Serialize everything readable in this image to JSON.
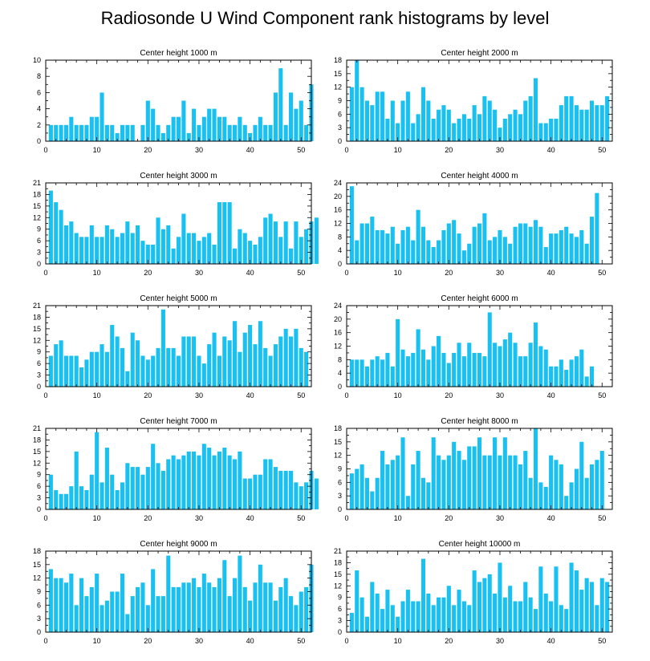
{
  "title": "Radiosonde U Wind Component rank histograms by level",
  "bar_color": "#19c1f2",
  "chart_data": [
    {
      "type": "bar",
      "title": "Center height 1000 m",
      "ylim": [
        0,
        10
      ],
      "yticks": [
        0,
        2,
        4,
        6,
        8,
        10
      ],
      "xticks": [
        0,
        10,
        20,
        30,
        40,
        50
      ],
      "values": [
        2,
        2,
        2,
        2,
        3,
        2,
        2,
        2,
        3,
        3,
        6,
        2,
        2,
        1,
        2,
        2,
        2,
        0,
        2,
        5,
        4,
        2,
        1,
        2,
        3,
        3,
        5,
        1,
        4,
        2,
        3,
        4,
        4,
        3,
        3,
        2,
        2,
        3,
        2,
        1,
        2,
        3,
        2,
        2,
        6,
        9,
        2,
        6,
        4,
        5,
        2,
        7
      ]
    },
    {
      "type": "bar",
      "title": "Center height 2000 m",
      "ylim": [
        0,
        18
      ],
      "yticks": [
        0,
        3,
        6,
        9,
        12,
        15,
        18
      ],
      "xticks": [
        0,
        10,
        20,
        30,
        40,
        50
      ],
      "values": [
        12,
        18,
        12,
        9,
        8,
        11,
        11,
        5,
        9,
        4,
        9,
        11,
        4,
        6,
        12,
        9,
        5,
        7,
        8,
        7,
        4,
        5,
        6,
        5,
        8,
        6,
        10,
        9,
        7,
        3,
        5,
        6,
        7,
        6,
        9,
        10,
        14,
        4,
        4,
        5,
        5,
        8,
        10,
        10,
        8,
        7,
        7,
        9,
        8,
        8,
        10
      ]
    },
    {
      "type": "bar",
      "title": "Center height 3000 m",
      "ylim": [
        0,
        21
      ],
      "yticks": [
        0,
        3,
        6,
        9,
        12,
        15,
        18,
        21
      ],
      "xticks": [
        0,
        10,
        20,
        30,
        40,
        50
      ],
      "values": [
        19,
        16,
        14,
        10,
        11,
        8,
        7,
        7,
        10,
        7,
        7,
        10,
        9,
        7,
        8,
        11,
        8,
        10,
        6,
        5,
        5,
        12,
        9,
        10,
        4,
        7,
        13,
        8,
        8,
        6,
        7,
        8,
        5,
        16,
        16,
        16,
        4,
        9,
        8,
        6,
        5,
        7,
        12,
        13,
        11,
        7,
        11,
        4,
        11,
        7,
        9,
        11,
        12
      ]
    },
    {
      "type": "bar",
      "title": "Center height 4000 m",
      "ylim": [
        0,
        24
      ],
      "yticks": [
        0,
        4,
        8,
        12,
        16,
        20,
        24
      ],
      "xticks": [
        0,
        10,
        20,
        30,
        40,
        50
      ],
      "values": [
        23,
        7,
        12,
        12,
        14,
        10,
        10,
        9,
        11,
        6,
        10,
        11,
        7,
        16,
        11,
        7,
        5,
        7,
        10,
        12,
        13,
        9,
        4,
        6,
        11,
        12,
        15,
        7,
        8,
        10,
        8,
        6,
        11,
        12,
        12,
        11,
        13,
        11,
        5,
        9,
        9,
        10,
        11,
        9,
        8,
        10,
        6,
        14,
        21
      ]
    },
    {
      "type": "bar",
      "title": "Center height 5000 m",
      "ylim": [
        0,
        21
      ],
      "yticks": [
        0,
        3,
        6,
        9,
        12,
        15,
        18,
        21
      ],
      "xticks": [
        0,
        10,
        20,
        30,
        40,
        50
      ],
      "values": [
        8,
        11,
        12,
        8,
        8,
        8,
        5,
        7,
        9,
        9,
        11,
        9,
        16,
        13,
        10,
        4,
        14,
        12,
        8,
        7,
        8,
        10,
        20,
        10,
        10,
        8,
        13,
        13,
        13,
        8,
        6,
        11,
        14,
        8,
        13,
        12,
        17,
        9,
        14,
        16,
        11,
        17,
        10,
        8,
        11,
        13,
        15,
        13,
        15,
        10,
        9
      ]
    },
    {
      "type": "bar",
      "title": "Center height 6000 m",
      "ylim": [
        0,
        24
      ],
      "yticks": [
        0,
        4,
        8,
        12,
        16,
        20,
        24
      ],
      "xticks": [
        0,
        10,
        20,
        30,
        40,
        50
      ],
      "values": [
        8,
        8,
        8,
        6,
        8,
        9,
        8,
        10,
        6,
        20,
        11,
        9,
        10,
        17,
        11,
        8,
        12,
        15,
        10,
        7,
        10,
        13,
        9,
        13,
        10,
        10,
        9,
        22,
        13,
        12,
        14,
        16,
        13,
        9,
        9,
        13,
        19,
        12,
        11,
        6,
        6,
        8,
        5,
        8,
        9,
        11,
        3,
        6
      ]
    },
    {
      "type": "bar",
      "title": "Center height 7000 m",
      "ylim": [
        0,
        21
      ],
      "yticks": [
        0,
        3,
        6,
        9,
        12,
        15,
        18,
        21
      ],
      "xticks": [
        0,
        10,
        20,
        30,
        40,
        50
      ],
      "values": [
        9,
        5,
        4,
        4,
        6,
        15,
        6,
        5,
        9,
        20,
        7,
        16,
        9,
        5,
        7,
        12,
        11,
        11,
        9,
        11,
        17,
        12,
        10,
        13,
        14,
        13,
        14,
        15,
        15,
        14,
        17,
        16,
        14,
        15,
        16,
        14,
        13,
        15,
        8,
        8,
        9,
        9,
        13,
        13,
        11,
        10,
        10,
        10,
        7,
        6,
        7,
        10,
        8
      ]
    },
    {
      "type": "bar",
      "title": "Center height 8000 m",
      "ylim": [
        0,
        18
      ],
      "yticks": [
        0,
        3,
        6,
        9,
        12,
        15,
        18
      ],
      "xticks": [
        0,
        10,
        20,
        30,
        40,
        50
      ],
      "values": [
        8,
        9,
        10,
        7,
        4,
        7,
        13,
        10,
        11,
        12,
        16,
        3,
        10,
        13,
        7,
        6,
        16,
        12,
        11,
        12,
        15,
        13,
        11,
        14,
        14,
        16,
        12,
        12,
        16,
        12,
        16,
        12,
        12,
        10,
        13,
        7,
        18,
        6,
        5,
        12,
        11,
        10,
        3,
        6,
        9,
        15,
        7,
        10,
        11,
        13
      ]
    },
    {
      "type": "bar",
      "title": "Center height 9000 m",
      "ylim": [
        0,
        18
      ],
      "yticks": [
        0,
        3,
        6,
        9,
        12,
        15,
        18
      ],
      "xticks": [
        0,
        10,
        20,
        30,
        40,
        50
      ],
      "values": [
        14,
        12,
        12,
        11,
        13,
        6,
        12,
        8,
        10,
        13,
        6,
        7,
        9,
        9,
        13,
        4,
        8,
        10,
        11,
        6,
        14,
        8,
        8,
        17,
        10,
        10,
        11,
        11,
        12,
        10,
        13,
        11,
        10,
        12,
        16,
        8,
        12,
        17,
        10,
        7,
        11,
        15,
        11,
        11,
        7,
        10,
        12,
        8,
        6,
        9,
        10,
        15
      ]
    },
    {
      "type": "bar",
      "title": "Center height 10000 m",
      "ylim": [
        0,
        21
      ],
      "yticks": [
        0,
        3,
        6,
        9,
        12,
        15,
        18,
        21
      ],
      "xticks": [
        0,
        10,
        20,
        30,
        40,
        50
      ],
      "values": [
        5,
        16,
        9,
        4,
        13,
        10,
        6,
        11,
        7,
        4,
        8,
        11,
        8,
        8,
        19,
        10,
        7,
        9,
        9,
        12,
        7,
        11,
        8,
        7,
        16,
        13,
        14,
        15,
        10,
        18,
        9,
        12,
        8,
        8,
        13,
        9,
        6,
        17,
        10,
        8,
        17,
        7,
        6,
        18,
        16,
        11,
        14,
        13,
        7,
        14,
        13
      ]
    }
  ]
}
